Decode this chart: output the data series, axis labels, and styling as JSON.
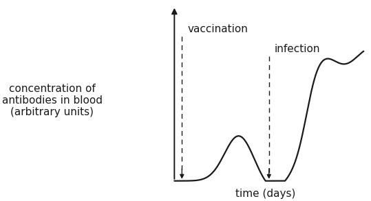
{
  "xlabel": "time (days)",
  "ylabel": "concentration of\nantibodies in blood\n(arbitrary units)",
  "background_color": "#ffffff",
  "line_color": "#1a1a1a",
  "vaccination_label": "vaccination",
  "infection_label": "infection",
  "xlabel_fontsize": 11,
  "ylabel_fontsize": 11,
  "label_fontsize": 11
}
